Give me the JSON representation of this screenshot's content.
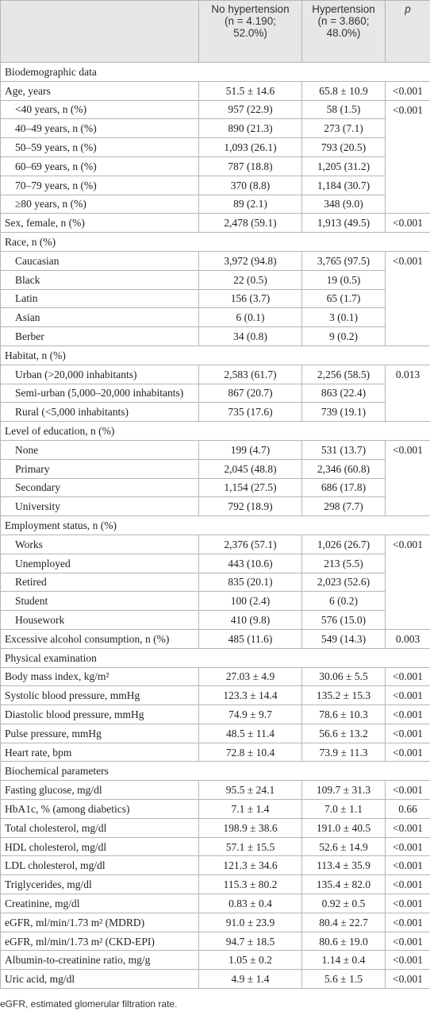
{
  "table": {
    "columns": [
      [
        "No hypertension",
        "(n = 4.190;",
        "52.0%)"
      ],
      [
        "Hypertension",
        "(n = 3.860;",
        "48.0%)"
      ],
      "p"
    ],
    "sections": [
      {
        "title": "Biodemographic data",
        "rows": [
          {
            "cells": [
              "Age, years",
              "51.5 ± 14.6",
              "65.8 ± 10.9",
              "<0.001"
            ]
          },
          {
            "p": "<0.001",
            "items": [
              [
                "<40 years, n (%)",
                "957 (22.9)",
                "58 (1.5)"
              ],
              [
                "40–49 years, n (%)",
                "890 (21.3)",
                "273 (7.1)"
              ],
              [
                "50–59 years, n (%)",
                "1,093 (26.1)",
                "793 (20.5)"
              ],
              [
                "60–69 years, n (%)",
                "787 (18.8)",
                "1,205 (31.2)"
              ],
              [
                "70–79 years, n (%)",
                "370 (8.8)",
                "1,184 (30.7)"
              ],
              [
                "≥80 years, n (%)",
                "89 (2.1)",
                "348 (9.0)"
              ]
            ]
          },
          {
            "cells": [
              "Sex, female, n (%)",
              "2,478 (59.1)",
              "1,913 (49.5)",
              "<0.001"
            ]
          },
          {
            "label": "Race, n (%)",
            "p": "<0.001",
            "items": [
              [
                "Caucasian",
                "3,972 (94.8)",
                "3,765 (97.5)"
              ],
              [
                "Black",
                "22 (0.5)",
                "19 (0.5)"
              ],
              [
                "Latin",
                "156 (3.7)",
                "65 (1.7)"
              ],
              [
                "Asian",
                "6 (0.1)",
                "3 (0.1)"
              ],
              [
                "Berber",
                "34 (0.8)",
                "9 (0.2)"
              ]
            ]
          },
          {
            "label": "Habitat, n (%)",
            "p": "0.013",
            "items": [
              [
                "Urban (>20,000 inhabitants)",
                "2,583 (61.7)",
                "2,256 (58.5)"
              ],
              [
                "Semi-urban (5,000–20,000 inhabitants)",
                "867 (20.7)",
                "863 (22.4)"
              ],
              [
                "Rural (<5,000 inhabitants)",
                "735 (17.6)",
                "739 (19.1)"
              ]
            ]
          },
          {
            "label": "Level of education, n (%)",
            "p": "<0.001",
            "items": [
              [
                "None",
                "199 (4.7)",
                "531 (13.7)"
              ],
              [
                "Primary",
                "2,045 (48.8)",
                "2,346 (60.8)"
              ],
              [
                "Secondary",
                "1,154 (27.5)",
                "686 (17.8)"
              ],
              [
                "University",
                "792 (18.9)",
                "298 (7.7)"
              ]
            ]
          },
          {
            "label": "Employment status, n (%)",
            "p": "<0.001",
            "items": [
              [
                "Works",
                "2,376 (57.1)",
                "1,026 (26.7)"
              ],
              [
                "Unemployed",
                "443 (10.6)",
                "213 (5.5)"
              ],
              [
                "Retired",
                "835 (20.1)",
                "2,023 (52.6)"
              ],
              [
                "Student",
                "100 (2.4)",
                "6 (0.2)"
              ],
              [
                "Housework",
                "410 (9.8)",
                "576 (15.0)"
              ]
            ]
          },
          {
            "cells": [
              "Excessive alcohol consumption, n (%)",
              "485 (11.6)",
              "549 (14.3)",
              "0.003"
            ]
          }
        ]
      },
      {
        "title": "Physical examination",
        "rows": [
          {
            "cells": [
              "Body mass index, kg/m²",
              "27.03 ± 4.9",
              "30.06 ± 5.5",
              "<0.001"
            ]
          },
          {
            "cells": [
              "Systolic blood pressure, mmHg",
              "123.3 ± 14.4",
              "135.2 ± 15.3",
              "<0.001"
            ]
          },
          {
            "cells": [
              "Diastolic blood pressure, mmHg",
              "74.9 ± 9.7",
              "78.6 ± 10.3",
              "<0.001"
            ]
          },
          {
            "cells": [
              "Pulse pressure, mmHg",
              "48.5 ± 11.4",
              "56.6 ± 13.2",
              "<0.001"
            ]
          },
          {
            "cells": [
              "Heart rate, bpm",
              "72.8 ± 10.4",
              "73.9 ± 11.3",
              "<0.001"
            ]
          }
        ]
      },
      {
        "title": "Biochemical parameters",
        "rows": [
          {
            "cells": [
              "Fasting glucose, mg/dl",
              "95.5 ± 24.1",
              "109.7 ± 31.3",
              "<0.001"
            ]
          },
          {
            "cells": [
              "HbA1c, % (among diabetics)",
              "7.1 ± 1.4",
              "7.0 ± 1.1",
              "0.66"
            ]
          },
          {
            "cells": [
              "Total cholesterol, mg/dl",
              "198.9 ± 38.6",
              "191.0 ± 40.5",
              "<0.001"
            ]
          },
          {
            "cells": [
              "HDL cholesterol, mg/dl",
              "57.1 ± 15.5",
              "52.6 ± 14.9",
              "<0.001"
            ]
          },
          {
            "cells": [
              "LDL cholesterol, mg/dl",
              "121.3 ± 34.6",
              "113.4 ± 35.9",
              "<0.001"
            ]
          },
          {
            "cells": [
              "Triglycerides, mg/dl",
              "115.3 ± 80.2",
              "135.4 ± 82.0",
              "<0.001"
            ]
          },
          {
            "cells": [
              "Creatinine, mg/dl",
              "0.83 ± 0.4",
              "0.92 ± 0.5",
              "<0.001"
            ]
          },
          {
            "cells": [
              "eGFR, ml/min/1.73 m² (MDRD)",
              "91.0 ± 23.9",
              "80.4 ± 22.7",
              "<0.001"
            ]
          },
          {
            "cells": [
              "eGFR, ml/min/1.73 m² (CKD-EPI)",
              "94.7 ± 18.5",
              "80.6 ± 19.0",
              "<0.001"
            ]
          },
          {
            "cells": [
              "Albumin-to-creatinine ratio, mg/g",
              "1.05 ± 0.2",
              "1.14 ± 0.4",
              "<0.001"
            ]
          },
          {
            "cells": [
              "Uric acid, mg/dl",
              "4.9 ± 1.4",
              "5.6 ± 1.5",
              "<0.001"
            ]
          }
        ]
      }
    ]
  },
  "footnote": "eGFR, estimated glomerular filtration rate."
}
